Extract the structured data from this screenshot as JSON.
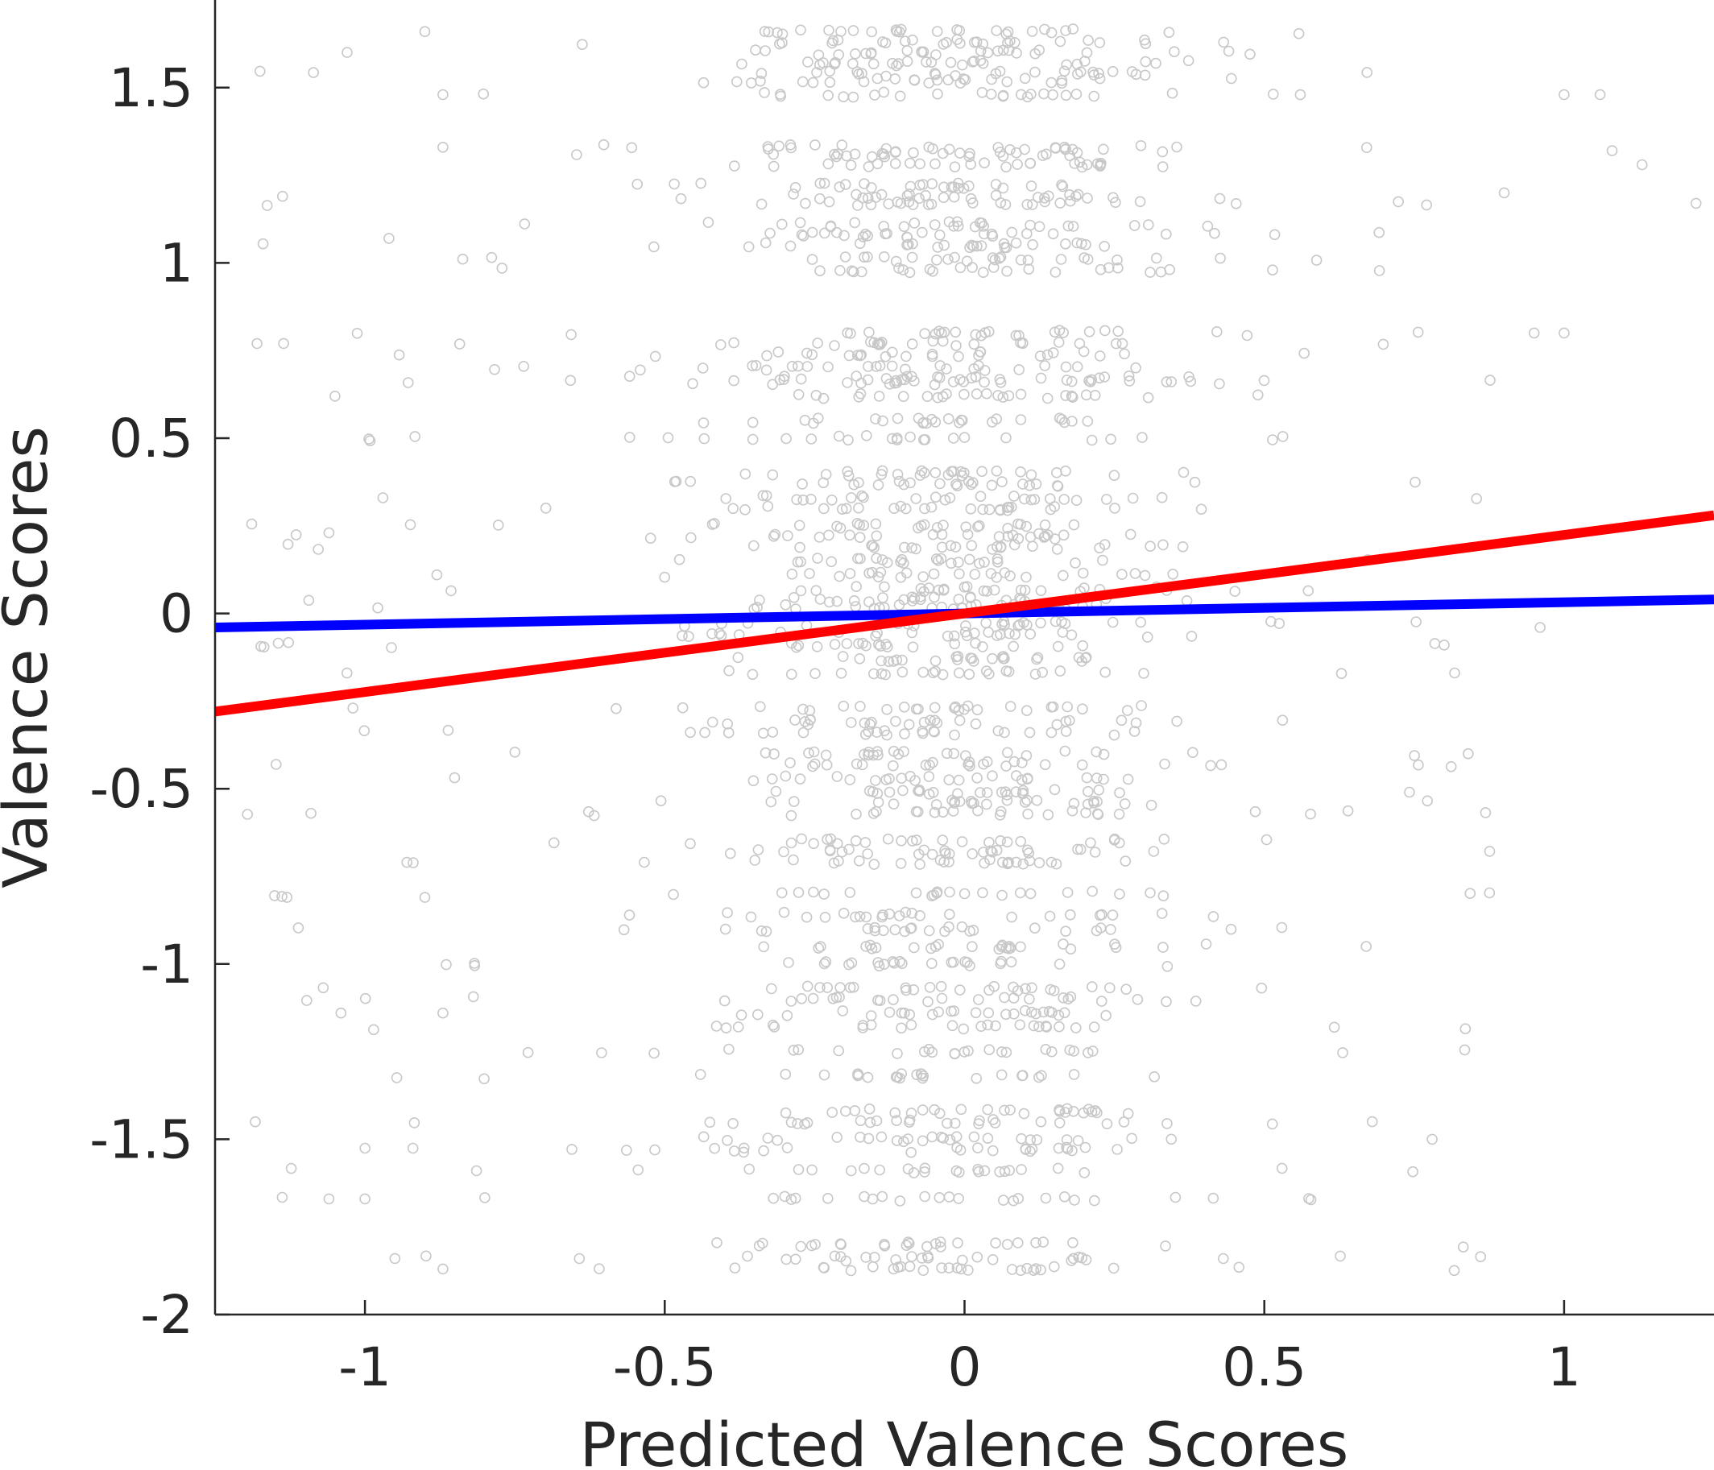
{
  "chart_data": {
    "type": "scatter",
    "title": "",
    "xlabel": "Predicted Valence Scores",
    "ylabel": "Valence Scores",
    "xlim": [
      -1.25,
      1.25
    ],
    "ylim": [
      -2,
      1.75
    ],
    "xticks": [
      -1,
      -0.5,
      0,
      0.5,
      1
    ],
    "xtick_labels": [
      "-1",
      "-0.5",
      "0",
      "0.5",
      "1"
    ],
    "yticks": [
      -2,
      -1.5,
      -1,
      -0.5,
      0,
      0.5,
      1,
      1.5
    ],
    "ytick_labels": [
      "-2",
      "-1.5",
      "-1",
      "-0.5",
      "0",
      "0.5",
      "1",
      "1.5"
    ],
    "grid": false,
    "legend": "none",
    "series": [
      {
        "type": "scatter",
        "color": "#c8c8c8",
        "marker": "open-circle",
        "y_levels": [
          1.66,
          1.63,
          1.6,
          1.57,
          1.54,
          1.52,
          1.48,
          1.33,
          1.31,
          1.28,
          1.22,
          1.19,
          1.17,
          1.11,
          1.08,
          1.05,
          1.01,
          0.98,
          0.8,
          0.77,
          0.74,
          0.7,
          0.67,
          0.66,
          0.62,
          0.55,
          0.5,
          0.4,
          0.37,
          0.33,
          0.3,
          0.25,
          0.22,
          0.19,
          0.15,
          0.11,
          0.07,
          0.04,
          0.02,
          -0.03,
          -0.06,
          -0.09,
          -0.13,
          -0.17,
          -0.27,
          -0.31,
          -0.34,
          -0.4,
          -0.43,
          -0.47,
          -0.51,
          -0.54,
          -0.57,
          -0.65,
          -0.68,
          -0.71,
          -0.8,
          -0.86,
          -0.9,
          -0.95,
          -1.0,
          -1.07,
          -1.1,
          -1.14,
          -1.18,
          -1.25,
          -1.32,
          -1.42,
          -1.45,
          -1.5,
          -1.53,
          -1.59,
          -1.67,
          -1.8,
          -1.84,
          -1.87
        ],
        "x_range_core": [
          -0.6,
          0.55
        ],
        "x_range_full": [
          -1.2,
          1.25
        ],
        "approx_count": 2000,
        "outliers": [
          {
            "x": -1.18,
            "y": 0.77
          },
          {
            "x": -0.9,
            "y": 1.66
          },
          {
            "x": -0.87,
            "y": 1.48
          },
          {
            "x": -0.87,
            "y": 1.33
          },
          {
            "x": -0.96,
            "y": 1.07
          },
          {
            "x": -1.05,
            "y": 0.62
          },
          {
            "x": -1.06,
            "y": 0.23
          },
          {
            "x": -0.97,
            "y": 0.33
          },
          {
            "x": -0.88,
            "y": 0.11
          },
          {
            "x": -1.03,
            "y": -0.17
          },
          {
            "x": -1.02,
            "y": -0.27
          },
          {
            "x": -1.09,
            "y": -0.57
          },
          {
            "x": -0.93,
            "y": -0.71
          },
          {
            "x": -1.13,
            "y": -0.81
          },
          {
            "x": -0.9,
            "y": -0.81
          },
          {
            "x": -1.04,
            "y": -1.14
          },
          {
            "x": -0.87,
            "y": -1.14
          },
          {
            "x": -1.06,
            "y": -1.67
          },
          {
            "x": -1.0,
            "y": -1.67
          },
          {
            "x": -0.95,
            "y": -1.84
          },
          {
            "x": -0.87,
            "y": -1.87
          },
          {
            "x": 1.06,
            "y": 1.48
          },
          {
            "x": 1.08,
            "y": 1.32
          },
          {
            "x": 1.13,
            "y": 1.28
          },
          {
            "x": 1.22,
            "y": 1.17
          },
          {
            "x": 1.0,
            "y": 1.48
          },
          {
            "x": 0.9,
            "y": 1.2
          },
          {
            "x": 0.95,
            "y": 0.8
          },
          {
            "x": 1.0,
            "y": 0.8
          },
          {
            "x": 0.96,
            "y": -0.04
          },
          {
            "x": 0.84,
            "y": -0.4
          },
          {
            "x": 0.8,
            "y": -0.09
          },
          {
            "x": 0.78,
            "y": -1.5
          },
          {
            "x": 0.68,
            "y": -1.45
          },
          {
            "x": 0.67,
            "y": -0.95
          }
        ]
      },
      {
        "type": "line",
        "name": "",
        "color": "#ff0000",
        "x": [
          -1.25,
          1.25
        ],
        "y": [
          -0.28,
          0.28
        ]
      },
      {
        "type": "line",
        "name": "",
        "color": "#0000ff",
        "x": [
          -1.25,
          1.25
        ],
        "y": [
          -0.04,
          0.04
        ]
      }
    ]
  }
}
